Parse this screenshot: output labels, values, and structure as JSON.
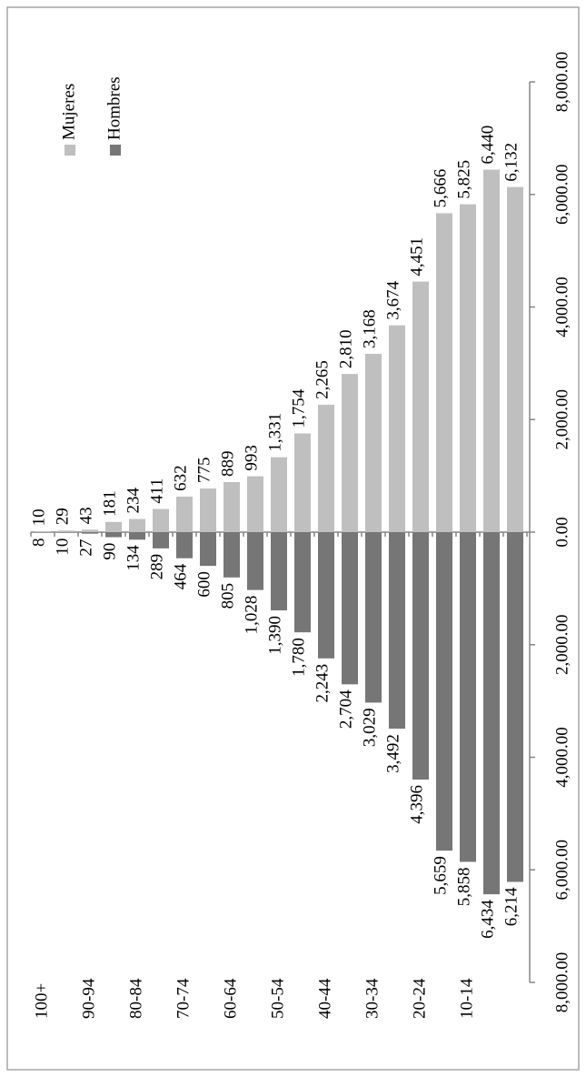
{
  "chart_data": {
    "type": "pyramid",
    "categories": [
      "100+",
      null,
      "90-94",
      null,
      "80-84",
      null,
      "70-74",
      null,
      "60-64",
      null,
      "50-54",
      null,
      "40-44",
      null,
      "30-34",
      null,
      "20-24",
      null,
      "10-14",
      null,
      null
    ],
    "series": [
      {
        "name": "Mujeres",
        "color": "#bfbfbf",
        "label_color": "#000000",
        "values": [
          10,
          29,
          43,
          181,
          234,
          411,
          632,
          775,
          889,
          993,
          1331,
          1754,
          2265,
          2810,
          3168,
          3674,
          4451,
          5666,
          5825,
          6440,
          6132
        ],
        "value_labels": [
          "10",
          "29",
          "43",
          "181",
          "234",
          "411",
          "632",
          "775",
          "889",
          "993",
          "1,331",
          "1,754",
          "2,265",
          "2,810",
          "3,168",
          "3,674",
          "4,451",
          "5,666",
          "5,825",
          "6,440",
          "6,132"
        ]
      },
      {
        "name": "Hombres",
        "color": "#767676",
        "label_color": "#ff0000",
        "values": [
          -8,
          -10,
          -27,
          -90,
          -134,
          -289,
          -464,
          -600,
          -805,
          -1028,
          -1390,
          -1780,
          -2243,
          -2704,
          -3029,
          -3492,
          -4396,
          -5659,
          -5858,
          -6434,
          -6214
        ],
        "value_labels": [
          "8",
          "10",
          "27",
          "90",
          "134",
          "289",
          "464",
          "600",
          "805",
          "1,028",
          "1,390",
          "1,780",
          "2,243",
          "2,704",
          "3,029",
          "3,492",
          "4,396",
          "5,659",
          "5,858",
          "6,434",
          "6,214"
        ]
      }
    ],
    "ylim": [
      -8000,
      8000
    ],
    "yticks": [
      {
        "value": -8000,
        "label": "8,000.00"
      },
      {
        "value": -6000,
        "label": "6,000.00"
      },
      {
        "value": -4000,
        "label": "4,000.00"
      },
      {
        "value": -2000,
        "label": "2,000.00"
      },
      {
        "value": 0,
        "label": "0.00"
      },
      {
        "value": 2000,
        "label": "2,000.00"
      },
      {
        "value": 4000,
        "label": "4,000.00"
      },
      {
        "value": 6000,
        "label": "6,000.00"
      },
      {
        "value": 8000,
        "label": "8,000.00"
      }
    ],
    "negative_tick_color": "#ff0000",
    "legend": "top-right"
  }
}
